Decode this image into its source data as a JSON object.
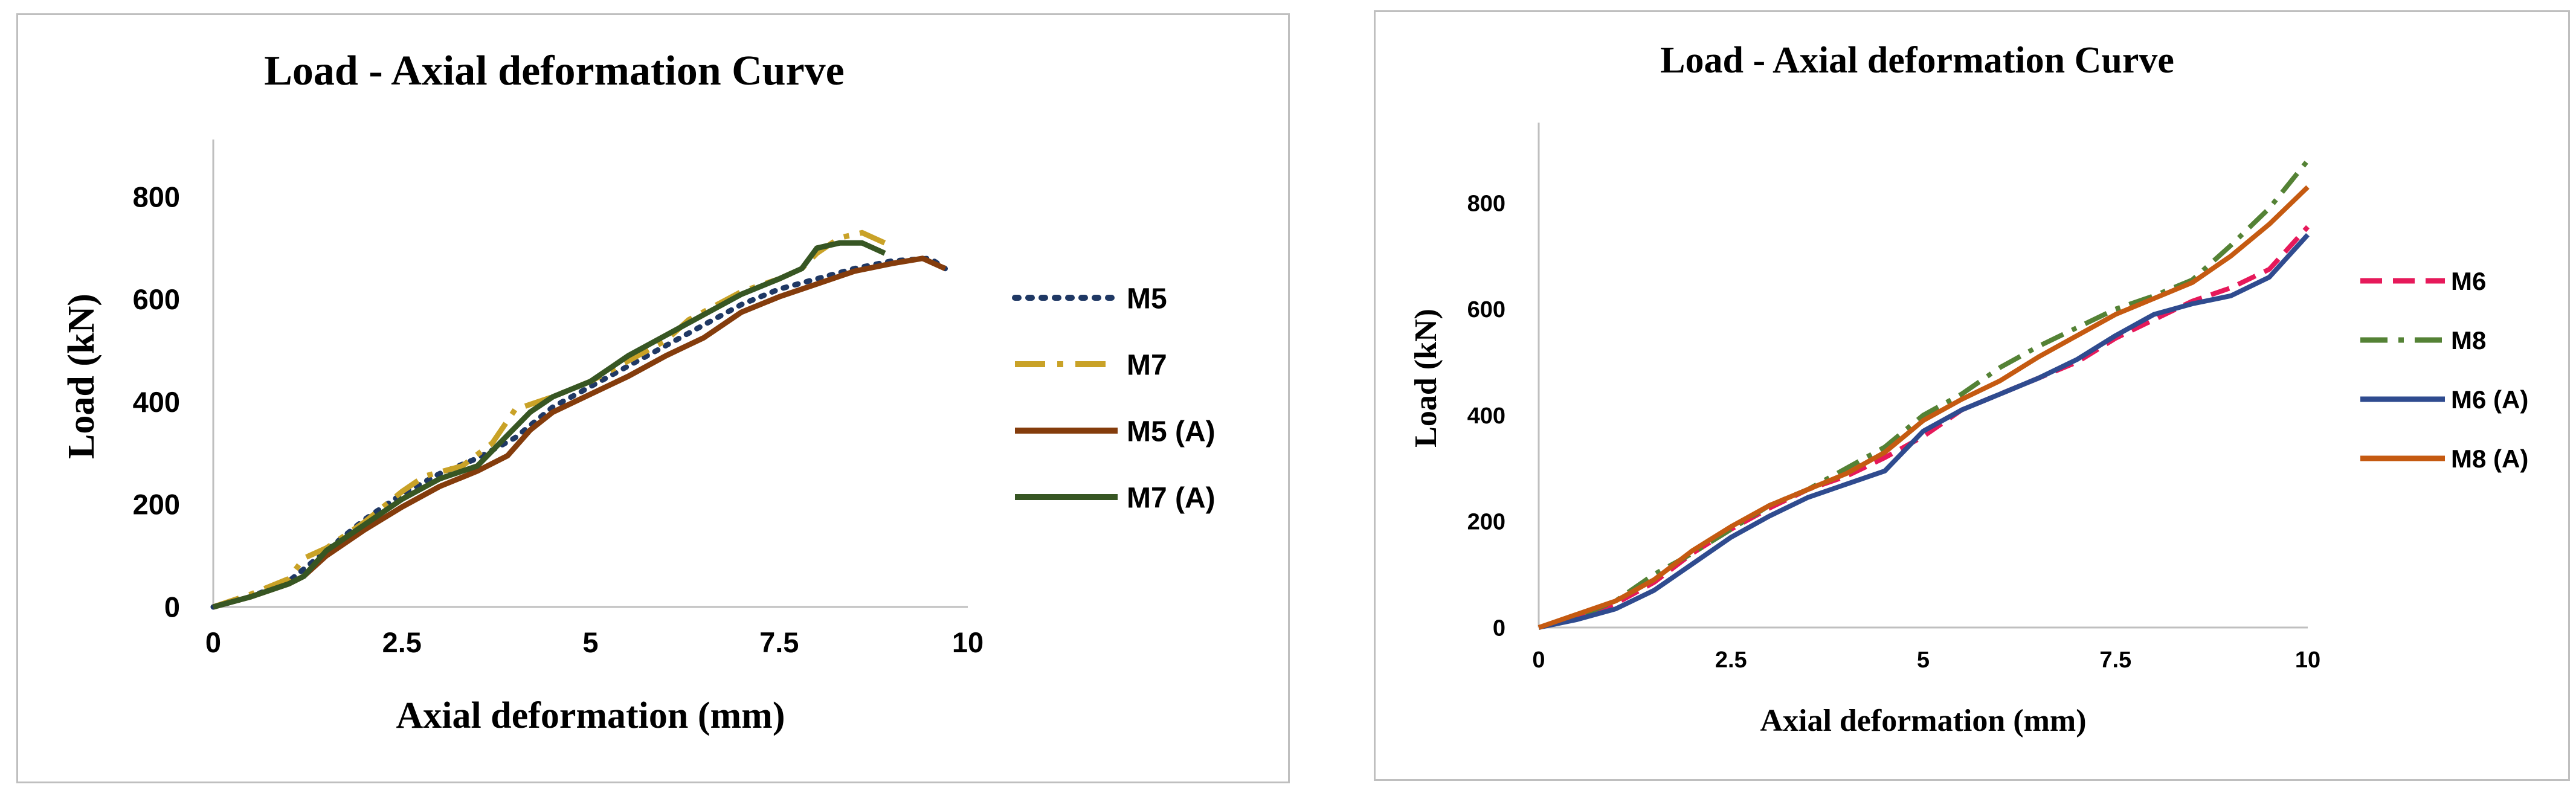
{
  "chart_data": [
    {
      "type": "line",
      "title": "Load - Axial deformation Curve",
      "xlabel": "Axial deformation (mm)",
      "ylabel": "Load (kN)",
      "xlim": [
        0,
        10
      ],
      "ylim": [
        0,
        900
      ],
      "x_ticks": [
        0,
        2.5,
        5,
        7.5,
        10
      ],
      "x_tick_labels": [
        "0",
        "2.5",
        "5",
        "7.5",
        "10"
      ],
      "y_ticks": [
        0,
        200,
        400,
        600,
        800
      ],
      "y_tick_labels": [
        "0",
        "200",
        "400",
        "600",
        "800"
      ],
      "grid": false,
      "legend_position": "right",
      "series": [
        {
          "name": "M5",
          "color": "#1f3864",
          "dash": "dotted",
          "points": [
            [
              0,
              0
            ],
            [
              0.5,
              20
            ],
            [
              1,
              50
            ],
            [
              1.5,
              110
            ],
            [
              2,
              170
            ],
            [
              2.5,
              220
            ],
            [
              3,
              260
            ],
            [
              3.5,
              290
            ],
            [
              4,
              330
            ],
            [
              4.5,
              390
            ],
            [
              5,
              430
            ],
            [
              5.5,
              470
            ],
            [
              6,
              510
            ],
            [
              6.5,
              550
            ],
            [
              7,
              590
            ],
            [
              7.5,
              620
            ],
            [
              8,
              640
            ],
            [
              8.5,
              660
            ],
            [
              9,
              675
            ],
            [
              9.5,
              680
            ],
            [
              9.7,
              660
            ]
          ]
        },
        {
          "name": "M7",
          "color": "#c9a227",
          "dash": "dashdot",
          "points": [
            [
              0,
              0
            ],
            [
              0.5,
              25
            ],
            [
              1,
              55
            ],
            [
              1.2,
              95
            ],
            [
              1.5,
              115
            ],
            [
              2,
              165
            ],
            [
              2.5,
              225
            ],
            [
              2.8,
              255
            ],
            [
              3.3,
              275
            ],
            [
              3.7,
              320
            ],
            [
              4,
              385
            ],
            [
              4.5,
              410
            ],
            [
              5,
              440
            ],
            [
              5.5,
              480
            ],
            [
              6,
              520
            ],
            [
              6.3,
              560
            ],
            [
              7,
              615
            ],
            [
              7.5,
              640
            ],
            [
              7.8,
              660
            ],
            [
              8,
              690
            ],
            [
              8.3,
              720
            ],
            [
              8.6,
              730
            ],
            [
              8.9,
              710
            ]
          ]
        },
        {
          "name": "M5 (A)",
          "color": "#843c0c",
          "dash": "solid",
          "points": [
            [
              0,
              0
            ],
            [
              0.5,
              20
            ],
            [
              1,
              45
            ],
            [
              1.2,
              60
            ],
            [
              1.5,
              100
            ],
            [
              2,
              150
            ],
            [
              2.5,
              195
            ],
            [
              3,
              235
            ],
            [
              3.5,
              265
            ],
            [
              3.9,
              295
            ],
            [
              4.2,
              345
            ],
            [
              4.5,
              380
            ],
            [
              5,
              415
            ],
            [
              5.5,
              450
            ],
            [
              6,
              490
            ],
            [
              6.5,
              525
            ],
            [
              7,
              575
            ],
            [
              7.5,
              605
            ],
            [
              8,
              630
            ],
            [
              8.5,
              655
            ],
            [
              9,
              670
            ],
            [
              9.4,
              680
            ],
            [
              9.7,
              660
            ]
          ]
        },
        {
          "name": "M7 (A)",
          "color": "#375623",
          "dash": "solid",
          "points": [
            [
              0,
              0
            ],
            [
              0.5,
              20
            ],
            [
              1,
              45
            ],
            [
              1.2,
              60
            ],
            [
              1.5,
              110
            ],
            [
              2,
              160
            ],
            [
              2.5,
              210
            ],
            [
              3,
              250
            ],
            [
              3.5,
              275
            ],
            [
              3.8,
              320
            ],
            [
              4.2,
              380
            ],
            [
              4.5,
              410
            ],
            [
              5,
              440
            ],
            [
              5.5,
              490
            ],
            [
              6,
              530
            ],
            [
              6.5,
              570
            ],
            [
              7,
              610
            ],
            [
              7.5,
              640
            ],
            [
              7.8,
              660
            ],
            [
              8,
              700
            ],
            [
              8.3,
              710
            ],
            [
              8.6,
              710
            ],
            [
              8.9,
              690
            ]
          ]
        }
      ]
    },
    {
      "type": "line",
      "title": "Load - Axial deformation Curve",
      "xlabel": "Axial deformation (mm)",
      "ylabel": "Load (kN)",
      "xlim": [
        0,
        10
      ],
      "ylim": [
        0,
        940
      ],
      "x_ticks": [
        0,
        2.5,
        5,
        7.5,
        10
      ],
      "x_tick_labels": [
        "0",
        "2.5",
        "5",
        "7.5",
        "10"
      ],
      "y_ticks": [
        0,
        200,
        400,
        600,
        800
      ],
      "y_tick_labels": [
        "0",
        "200",
        "400",
        "600",
        "800"
      ],
      "grid": false,
      "legend_position": "right",
      "series": [
        {
          "name": "M6",
          "color": "#e6195a",
          "dash": "dashed",
          "points": [
            [
              0,
              0
            ],
            [
              0.5,
              20
            ],
            [
              1,
              45
            ],
            [
              1.5,
              85
            ],
            [
              2,
              140
            ],
            [
              2.5,
              185
            ],
            [
              3,
              225
            ],
            [
              3.5,
              260
            ],
            [
              4,
              285
            ],
            [
              4.5,
              320
            ],
            [
              5,
              360
            ],
            [
              5.5,
              410
            ],
            [
              6,
              440
            ],
            [
              6.5,
              470
            ],
            [
              7,
              500
            ],
            [
              7.5,
              545
            ],
            [
              8,
              580
            ],
            [
              8.5,
              615
            ],
            [
              9,
              640
            ],
            [
              9.5,
              675
            ],
            [
              10,
              755
            ]
          ]
        },
        {
          "name": "M8",
          "color": "#548235",
          "dash": "dashdot",
          "points": [
            [
              0,
              0
            ],
            [
              0.5,
              20
            ],
            [
              1,
              50
            ],
            [
              1.5,
              100
            ],
            [
              2,
              140
            ],
            [
              2.5,
              185
            ],
            [
              3,
              230
            ],
            [
              3.5,
              260
            ],
            [
              4,
              300
            ],
            [
              4.5,
              340
            ],
            [
              5,
              400
            ],
            [
              5.5,
              440
            ],
            [
              6,
              490
            ],
            [
              6.5,
              530
            ],
            [
              7,
              565
            ],
            [
              7.5,
              600
            ],
            [
              8,
              625
            ],
            [
              8.5,
              655
            ],
            [
              9,
              720
            ],
            [
              9.5,
              790
            ],
            [
              10,
              880
            ]
          ]
        },
        {
          "name": "M6 (A)",
          "color": "#2f4b8f",
          "dash": "solid",
          "points": [
            [
              0,
              0
            ],
            [
              0.5,
              15
            ],
            [
              1,
              35
            ],
            [
              1.5,
              70
            ],
            [
              2,
              120
            ],
            [
              2.5,
              170
            ],
            [
              3,
              210
            ],
            [
              3.5,
              245
            ],
            [
              4,
              270
            ],
            [
              4.5,
              295
            ],
            [
              5,
              370
            ],
            [
              5.5,
              410
            ],
            [
              6,
              440
            ],
            [
              6.5,
              470
            ],
            [
              7,
              505
            ],
            [
              7.5,
              550
            ],
            [
              8,
              590
            ],
            [
              8.5,
              610
            ],
            [
              9,
              625
            ],
            [
              9.5,
              660
            ],
            [
              10,
              740
            ]
          ]
        },
        {
          "name": "M8 (A)",
          "color": "#c55a11",
          "dash": "solid",
          "points": [
            [
              0,
              0
            ],
            [
              0.5,
              25
            ],
            [
              1,
              50
            ],
            [
              1.5,
              90
            ],
            [
              2,
              145
            ],
            [
              2.5,
              190
            ],
            [
              3,
              230
            ],
            [
              3.5,
              260
            ],
            [
              4,
              290
            ],
            [
              4.5,
              330
            ],
            [
              5,
              390
            ],
            [
              5.5,
              430
            ],
            [
              6,
              465
            ],
            [
              6.5,
              510
            ],
            [
              7,
              550
            ],
            [
              7.5,
              590
            ],
            [
              8,
              620
            ],
            [
              8.5,
              650
            ],
            [
              9,
              700
            ],
            [
              9.5,
              760
            ],
            [
              10,
              830
            ]
          ]
        }
      ]
    }
  ]
}
